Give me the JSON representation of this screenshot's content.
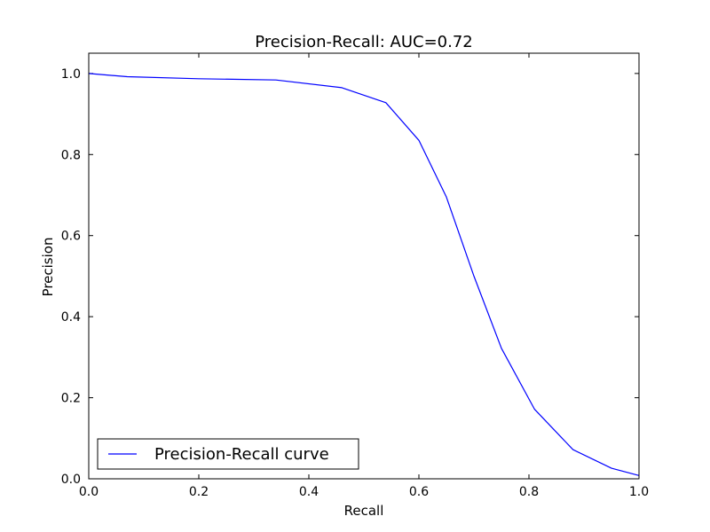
{
  "chart_data": {
    "type": "line",
    "title": "Precision-Recall: AUC=0.72",
    "xlabel": "Recall",
    "ylabel": "Precision",
    "xlim": [
      0.0,
      1.0
    ],
    "ylim": [
      0.0,
      1.05
    ],
    "xticks": [
      "0.0",
      "0.2",
      "0.4",
      "0.6",
      "0.8",
      "1.0"
    ],
    "yticks": [
      "0.0",
      "0.2",
      "0.4",
      "0.6",
      "0.8",
      "1.0"
    ],
    "grid": false,
    "legend_position": "lower-left",
    "series": [
      {
        "name": "Precision-Recall curve",
        "color": "#0000ff",
        "x": [
          0.0,
          0.07,
          0.2,
          0.34,
          0.46,
          0.54,
          0.6,
          0.65,
          0.7,
          0.75,
          0.81,
          0.88,
          0.95,
          1.0
        ],
        "y": [
          1.0,
          0.992,
          0.987,
          0.984,
          0.965,
          0.928,
          0.835,
          0.695,
          0.5,
          0.322,
          0.172,
          0.072,
          0.026,
          0.008
        ]
      }
    ]
  }
}
